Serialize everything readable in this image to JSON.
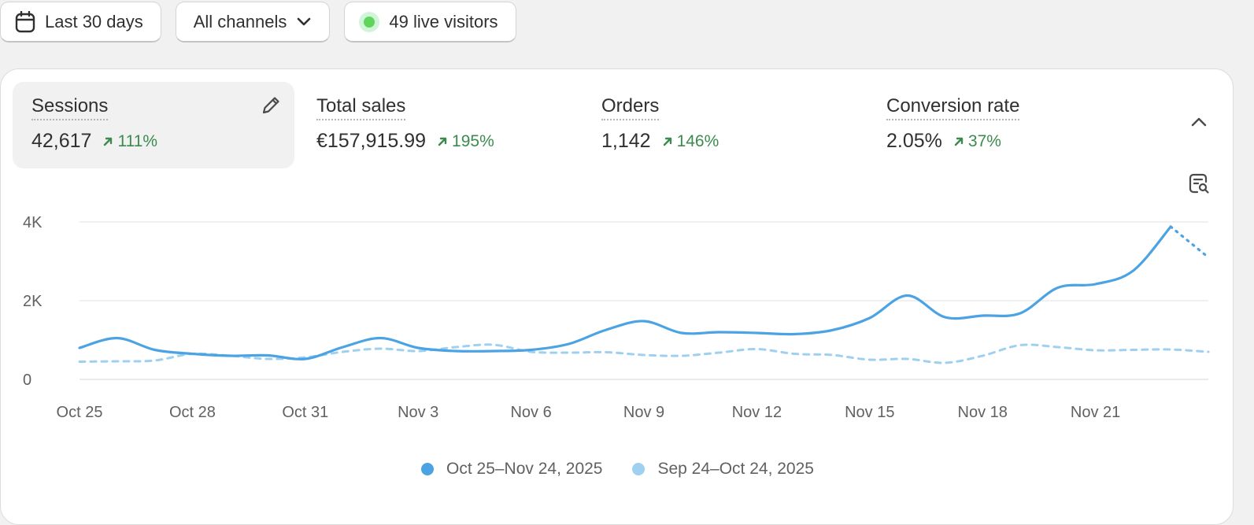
{
  "toolbar": {
    "date_range_label": "Last 30 days",
    "channel_label": "All channels",
    "live_visitors_label": "49 live visitors"
  },
  "metrics": [
    {
      "label": "Sessions",
      "value": "42,617",
      "change": "111%",
      "selected": true
    },
    {
      "label": "Total sales",
      "value": "€157,915.99",
      "change": "195%"
    },
    {
      "label": "Orders",
      "value": "1,142",
      "change": "146%"
    },
    {
      "label": "Conversion rate",
      "value": "2.05%",
      "change": "37%"
    }
  ],
  "icons": {
    "calendar": "calendar-icon",
    "chevron": "chevron-down-icon",
    "edit": "pencil-icon",
    "collapse": "chevron-up-icon",
    "report": "report-search-icon",
    "trend": "arrow-up-right-icon"
  },
  "colors": {
    "primary_series": "#4ba3e3",
    "comparison_series": "#9fd0ef",
    "positive_change": "#3d8a4f",
    "live_dot": "#5fd65b"
  },
  "chart_data": {
    "type": "line",
    "ylim": [
      0,
      4000
    ],
    "yticks": [
      {
        "value": 0,
        "label": "0"
      },
      {
        "value": 2000,
        "label": "2K"
      },
      {
        "value": 4000,
        "label": "4K"
      }
    ],
    "xticks": [
      {
        "day": 0,
        "label": "Oct 25"
      },
      {
        "day": 3,
        "label": "Oct 28"
      },
      {
        "day": 6,
        "label": "Oct 31"
      },
      {
        "day": 9,
        "label": "Nov 3"
      },
      {
        "day": 12,
        "label": "Nov 6"
      },
      {
        "day": 15,
        "label": "Nov 9"
      },
      {
        "day": 18,
        "label": "Nov 12"
      },
      {
        "day": 21,
        "label": "Nov 15"
      },
      {
        "day": 24,
        "label": "Nov 18"
      },
      {
        "day": 27,
        "label": "Nov 21"
      }
    ],
    "series": [
      {
        "name": "Oct 25–Nov 24, 2025",
        "style": "solid",
        "dotted_tail_from": 29,
        "values": [
          800,
          1050,
          750,
          650,
          600,
          610,
          520,
          820,
          1050,
          800,
          720,
          720,
          750,
          900,
          1260,
          1480,
          1180,
          1200,
          1180,
          1150,
          1250,
          1560,
          2130,
          1580,
          1620,
          1680,
          2330,
          2420,
          2760,
          3880,
          3100
        ]
      },
      {
        "name": "Sep 24–Oct 24, 2025",
        "style": "dashed",
        "values": [
          450,
          460,
          480,
          650,
          600,
          520,
          560,
          700,
          780,
          720,
          820,
          880,
          700,
          680,
          690,
          620,
          600,
          680,
          770,
          650,
          620,
          500,
          520,
          420,
          600,
          870,
          820,
          740,
          750,
          760,
          700
        ]
      }
    ]
  }
}
